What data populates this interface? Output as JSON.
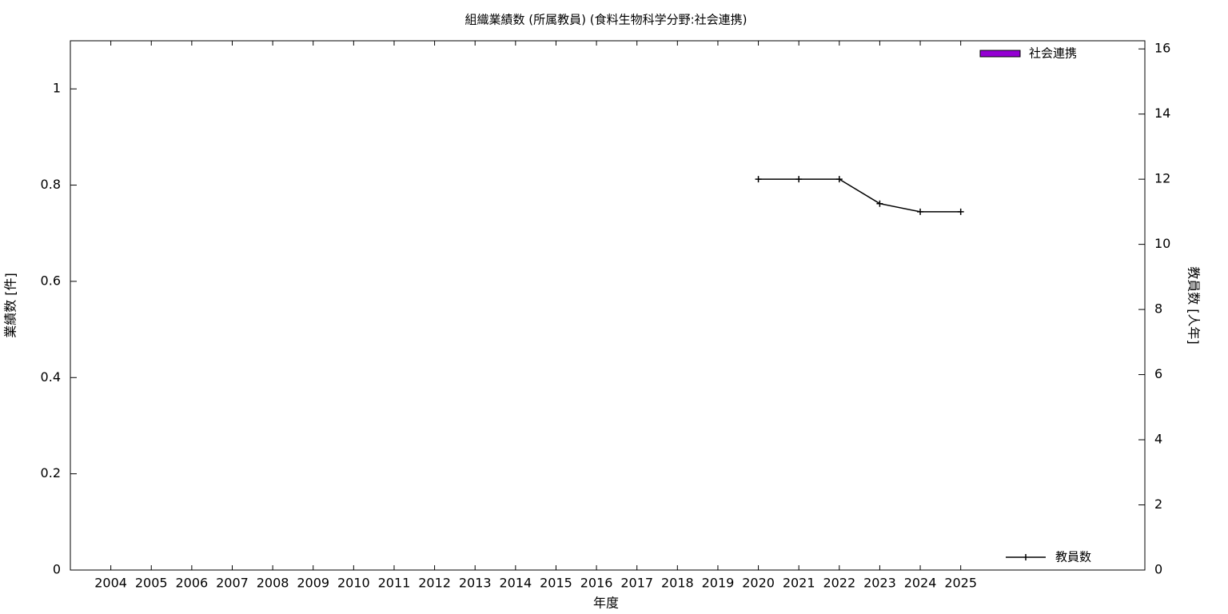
{
  "chart_data": {
    "type": "bar",
    "title": "組織業績数 (所属教員) (食料生物科学分野:社会連携)",
    "xlabel": "年度",
    "ylabel": "業績数 [件]",
    "y2label": "教員数 [人年]",
    "x": [
      2004,
      2005,
      2006,
      2007,
      2008,
      2009,
      2010,
      2011,
      2012,
      2013,
      2014,
      2015,
      2016,
      2017,
      2018,
      2019,
      2020,
      2021,
      2022,
      2023,
      2024,
      2025
    ],
    "xlim": [
      2003,
      2029.55
    ],
    "xticks": [
      2004,
      2005,
      2006,
      2007,
      2008,
      2009,
      2010,
      2011,
      2012,
      2013,
      2014,
      2015,
      2016,
      2017,
      2018,
      2019,
      2020,
      2021,
      2022,
      2023,
      2024,
      2025
    ],
    "ylim": [
      0,
      1.1
    ],
    "yticks": [
      0,
      0.2,
      0.4,
      0.6,
      0.8,
      1
    ],
    "y2lim": [
      0,
      16.25
    ],
    "y2ticks": [
      0,
      2,
      4,
      6,
      8,
      10,
      12,
      14,
      16
    ],
    "series": [
      {
        "name": "社会連携",
        "type": "bar",
        "color": "#9400d3",
        "legend": "upper right",
        "values": [
          0,
          0,
          0,
          0,
          0,
          0,
          0,
          0,
          0,
          0,
          0,
          0,
          0,
          0,
          0,
          0,
          0,
          0,
          0,
          0,
          0,
          0
        ]
      },
      {
        "name": "教員数",
        "type": "line",
        "axis": "y2",
        "color": "#000000",
        "legend": "lower right",
        "values": [
          null,
          null,
          null,
          null,
          null,
          null,
          null,
          null,
          null,
          null,
          null,
          null,
          null,
          null,
          null,
          null,
          12,
          12,
          12,
          11.25,
          11,
          11
        ]
      }
    ]
  }
}
